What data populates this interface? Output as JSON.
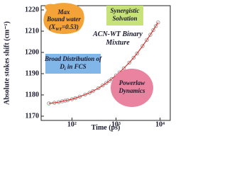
{
  "chart_data": {
    "type": "line",
    "x_label": "Time (ps)",
    "y_label": "Absolute stokes shift (cm⁻¹)",
    "x": [
      30,
      40,
      50,
      60,
      70,
      80,
      100,
      120,
      150,
      200,
      250,
      300,
      400,
      500,
      600,
      700,
      800,
      1000,
      1200,
      1500,
      2000,
      2500,
      3000,
      4000,
      5000,
      6000,
      7000,
      8000,
      9000
    ],
    "series": [
      {
        "color": "#e0302a",
        "marker_color": "#8a8a8a",
        "values": [
          1176,
          1176.3,
          1176.6,
          1177,
          1177.3,
          1177.5,
          1178,
          1178.5,
          1179.2,
          1180.2,
          1181,
          1181.8,
          1183.2,
          1184.5,
          1185.6,
          1186.6,
          1187.5,
          1189.2,
          1190.6,
          1192.5,
          1195.2,
          1197.5,
          1199.5,
          1203,
          1205.9,
          1208.3,
          1210.5,
          1212.4,
          1214.1
        ]
      }
    ],
    "x_log": true,
    "xlim": [
      20,
      17000
    ],
    "xticks": [
      {
        "value": 100,
        "label": "10²"
      },
      {
        "value": 1000,
        "label": "10³"
      },
      {
        "value": 10000,
        "label": "10⁴"
      }
    ],
    "ylim": [
      1168,
      1222
    ],
    "yticks": [
      1170,
      1180,
      1190,
      1200,
      1210,
      1220
    ],
    "annotations": [
      {
        "lines": [
          "Max",
          "Bound water"
        ],
        "formula": [
          "(X",
          "WT",
          "=0.53)"
        ],
        "color": "#f4a338"
      },
      {
        "lines": [
          "Synergistic",
          "Solvation"
        ],
        "color": "#c8e27a"
      },
      {
        "lines": [
          "ACN-WT Binary",
          "Mixture"
        ]
      },
      {
        "lines": [
          "Broad Distribution of"
        ],
        "formula": [
          "D",
          "i",
          " in FCS"
        ],
        "color": "#80b6e8"
      },
      {
        "lines": [
          "Powerlaw",
          "Dynamics"
        ],
        "color": "#e9839f"
      }
    ]
  }
}
